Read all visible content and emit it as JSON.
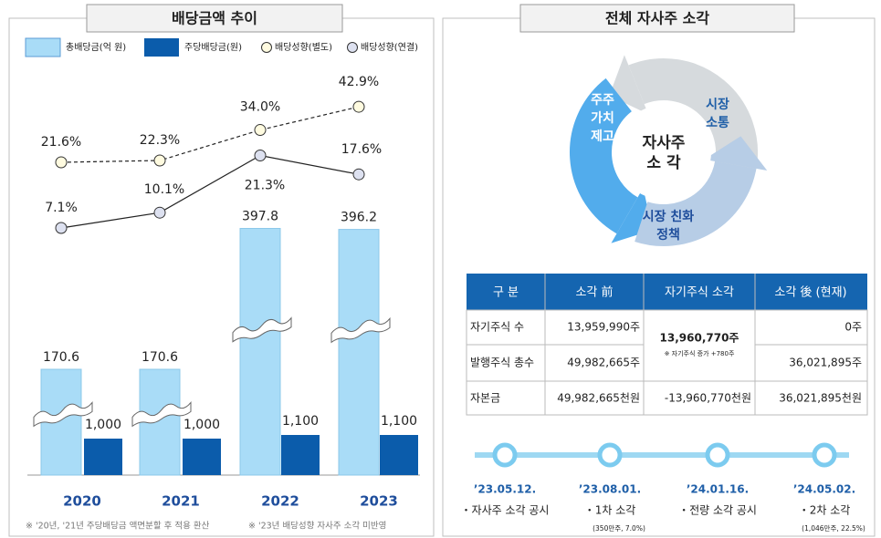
{
  "dividend_panel": {
    "title": "배당금액 추이",
    "legend": [
      "총배당금(억 원)",
      "주당배당금(원)",
      "배당성향(별도)",
      "배당성향(연결)"
    ],
    "categories": [
      "2020",
      "2021",
      "2022",
      "2023"
    ],
    "total_dividend": {
      "values": [
        170.6,
        170.6,
        397.8,
        396.2
      ],
      "color": "#a9dcf7"
    },
    "dividend_per_share": {
      "values": [
        1000,
        1000,
        1100,
        1100
      ],
      "value_labels": [
        "1,000",
        "1,000",
        "1,100",
        "1,100"
      ],
      "color": "#0b5cab"
    },
    "payout_separate": {
      "values": [
        21.6,
        22.3,
        34.0,
        42.9
      ],
      "value_labels": [
        "21.6%",
        "22.3%",
        "34.0%",
        "42.9%"
      ],
      "color": "#fffbe0"
    },
    "payout_consolidated": {
      "values": [
        7.1,
        10.1,
        21.3,
        17.6
      ],
      "value_labels": [
        "7.1%",
        "10.1%",
        "21.3%",
        "17.6%"
      ],
      "color": "#dde1f0"
    },
    "footnotes": [
      "※ '20년, '21년 주당배당금 액면분할 후 적용 환산",
      "※ '23년 배당성향 자사주 소각 미반영"
    ]
  },
  "buyback_panel": {
    "title": "전체 자사주 소각",
    "cycle": {
      "center": [
        "자사주",
        "소 각"
      ],
      "left": [
        "주주",
        "가치",
        "제고"
      ],
      "right": [
        "시장",
        "소통"
      ],
      "bottom": [
        "시장 친화",
        "정책"
      ]
    },
    "table": {
      "header": [
        "구 분",
        "소각 前",
        "자기주식 소각",
        "소각 後 (현재)"
      ],
      "rows": [
        [
          "자기주식 수",
          "13,959,990주",
          "13,960,770주",
          "0주"
        ],
        [
          "발행주식 총수",
          "49,982,665주",
          "36,021,895주"
        ],
        [
          "자본금",
          "49,982,665천원",
          "-13,960,770천원",
          "36,021,895천원"
        ]
      ],
      "note": "※ 자기주식 증가 +780주"
    },
    "timeline": [
      {
        "date": "’23.05.12.",
        "event": "・자사주 소각 공시"
      },
      {
        "date": "’23.08.01.",
        "event": "・1차 소각",
        "note": "(350만주, 7.0%)"
      },
      {
        "date": "’24.01.16.",
        "event": "・전량 소각 공시"
      },
      {
        "date": "’24.05.02.",
        "event": "・2차 소각",
        "note": "(1,046만주, 22.5%)"
      }
    ]
  }
}
